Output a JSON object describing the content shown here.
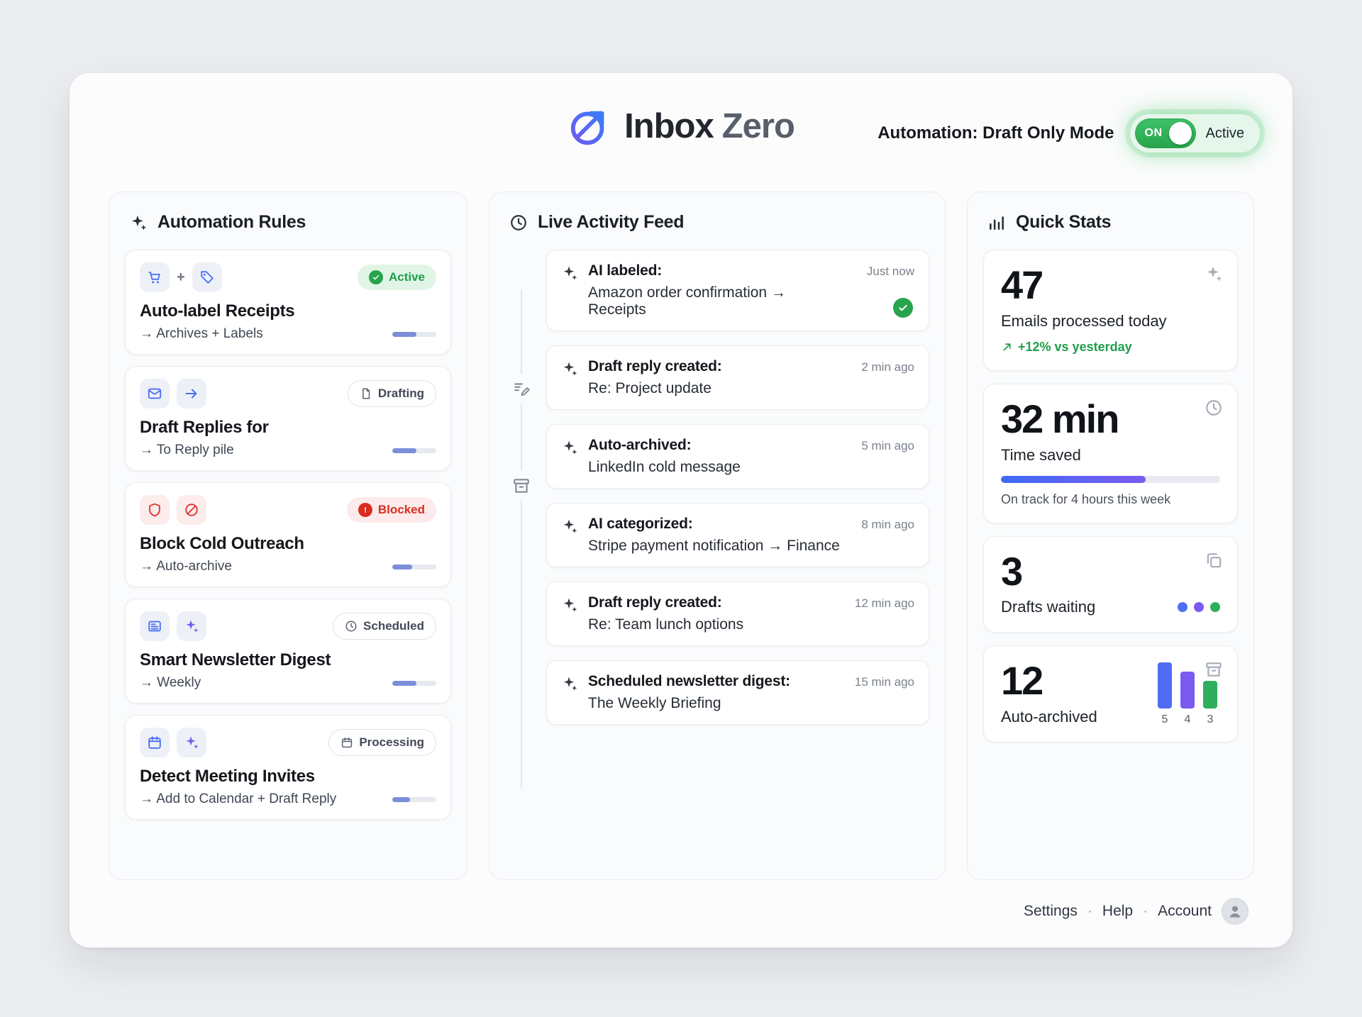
{
  "colors": {
    "accent_blue": "#4f6df2",
    "accent_purple": "#7a5af0",
    "accent_green": "#2fae5d",
    "accent_red": "#d92d20"
  },
  "header": {
    "logo_icon": "inbox-zero-logo",
    "title_primary": "Inbox",
    "title_secondary": "Zero",
    "automation_label": "Automation: Draft Only Mode",
    "toggle": {
      "state": "ON",
      "status": "Active"
    }
  },
  "rules_panel": {
    "title": "Automation Rules",
    "header_icon": "sparkles-icon",
    "chip_joiner": "+",
    "rules": [
      {
        "name": "Auto-label Receipts",
        "action": "→ Archives + Labels",
        "badge": "Active",
        "badge_style": "active",
        "icons": [
          "cart-icon",
          "tag-icon"
        ],
        "progress": 55
      },
      {
        "name": "Draft Replies for",
        "action": "→ To Reply pile",
        "badge": "Drafting",
        "badge_style": "neutral",
        "badge_icon": "document-icon",
        "icons": [
          "mail-icon",
          "arrow-right-icon"
        ],
        "progress": 55
      },
      {
        "name": "Block Cold Outreach",
        "action": "→ Auto-archive",
        "badge": "Blocked",
        "badge_style": "blocked",
        "icons": [
          "shield-icon",
          "ban-icon"
        ],
        "progress": 45
      },
      {
        "name": "Smart Newsletter Digest",
        "action": "→ Weekly",
        "badge": "Scheduled",
        "badge_style": "neutral",
        "badge_icon": "clock-icon",
        "icons": [
          "newspaper-icon",
          "sparkles-icon"
        ],
        "progress": 55
      },
      {
        "name": "Detect Meeting Invites",
        "action": "→ Add to Calendar + Draft Reply",
        "badge": "Processing",
        "badge_style": "neutral",
        "badge_icon": "calendar-icon",
        "icons": [
          "calendar-icon",
          "sparkles-icon"
        ],
        "progress": 40
      }
    ]
  },
  "activity_panel": {
    "title": "Live Activity Feed",
    "header_icon": "clock-icon",
    "items": [
      {
        "action": "AI labeled:",
        "detail": "Amazon order confirmation → Receipts",
        "time": "Just now",
        "confirmed": true
      },
      {
        "action": "Draft reply created:",
        "detail": "Re: Project update",
        "time": "2 min ago"
      },
      {
        "action": "Auto-archived:",
        "detail": "LinkedIn cold message",
        "time": "5 min ago"
      },
      {
        "action": "AI categorized:",
        "detail": "Stripe payment notification → Finance",
        "time": "8 min ago"
      },
      {
        "action": "Draft reply created:",
        "detail": "Re: Team lunch options",
        "time": "12 min ago"
      },
      {
        "action": "Scheduled newsletter digest:",
        "detail": "The Weekly Briefing",
        "time": "15 min ago"
      }
    ]
  },
  "stats_panel": {
    "title": "Quick Stats",
    "header_icon": "bar-chart-icon",
    "emails": {
      "value": "47",
      "label": "Emails processed today",
      "trend": "+12% vs yesterday"
    },
    "time_saved": {
      "value": "32 min",
      "label": "Time saved",
      "note": "On track for 4 hours this week",
      "progress": 66
    },
    "drafts": {
      "value": "3",
      "label": "Drafts waiting"
    },
    "auto_archived": {
      "value": "12",
      "label": "Auto-archived"
    }
  },
  "chart_data": {
    "type": "bar",
    "title": "Auto-archived recent counts",
    "categories": [
      "5",
      "4",
      "3"
    ],
    "values": [
      5,
      4,
      3
    ],
    "colors": [
      "#4f6df2",
      "#7a5af0",
      "#2fae5d"
    ]
  },
  "footer": {
    "links": [
      "Settings",
      "Help",
      "Account"
    ],
    "separator": "·"
  }
}
